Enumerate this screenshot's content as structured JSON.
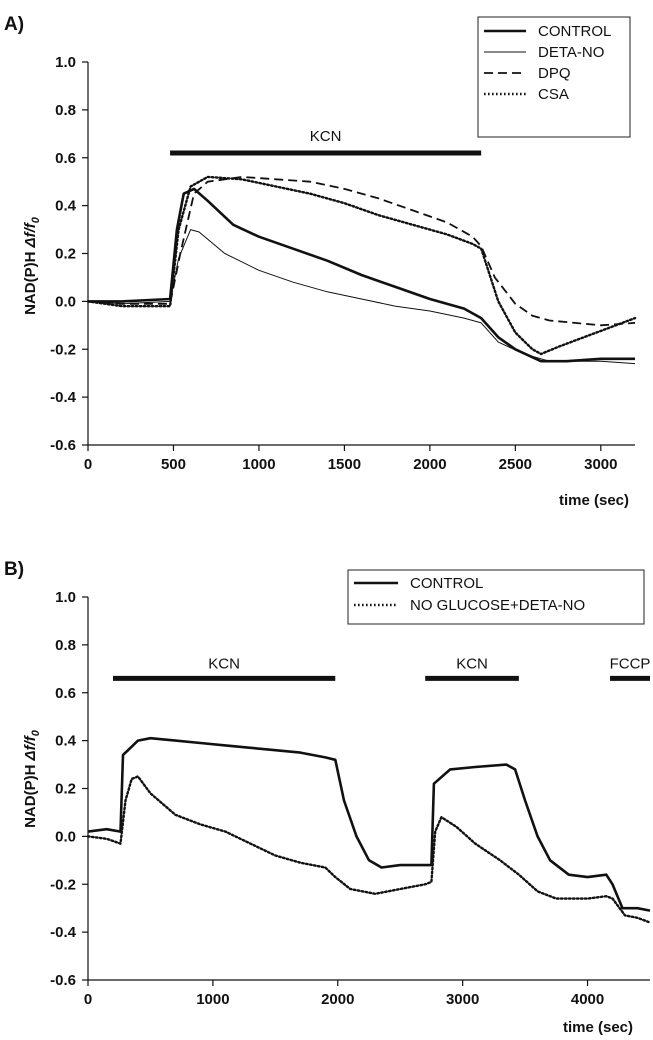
{
  "chart_data": [
    {
      "panel_label": "A)",
      "type": "line",
      "xlabel": "time (sec)",
      "ylabel": "NAD(P)H Δf/f0",
      "xlim": [
        0,
        3200
      ],
      "ylim": [
        -0.6,
        1.0
      ],
      "xticks": [
        0,
        500,
        1000,
        1500,
        2000,
        2500,
        3000
      ],
      "yticks": [
        -0.6,
        -0.4,
        -0.2,
        0.0,
        0.2,
        0.4,
        0.6,
        0.8,
        1.0
      ],
      "ytick_labels": [
        "-0.6",
        "-0.4",
        "-0.2",
        "0.0",
        "0.2",
        "0.4",
        "0.6",
        "0.8",
        "1.0"
      ],
      "legend_position": "top-right",
      "bars": [
        {
          "label": "KCN",
          "start": 480,
          "end": 2300,
          "y": 0.62
        }
      ],
      "series": [
        {
          "name": "CONTROL",
          "style": "thick-solid",
          "points": [
            [
              0,
              0
            ],
            [
              200,
              0
            ],
            [
              480,
              0.01
            ],
            [
              520,
              0.3
            ],
            [
              560,
              0.45
            ],
            [
              620,
              0.47
            ],
            [
              700,
              0.42
            ],
            [
              850,
              0.32
            ],
            [
              1000,
              0.27
            ],
            [
              1200,
              0.22
            ],
            [
              1400,
              0.17
            ],
            [
              1600,
              0.11
            ],
            [
              1800,
              0.06
            ],
            [
              2000,
              0.01
            ],
            [
              2200,
              -0.03
            ],
            [
              2300,
              -0.07
            ],
            [
              2400,
              -0.15
            ],
            [
              2500,
              -0.2
            ],
            [
              2650,
              -0.25
            ],
            [
              2800,
              -0.25
            ],
            [
              3000,
              -0.24
            ],
            [
              3200,
              -0.24
            ]
          ]
        },
        {
          "name": "DETA-NO",
          "style": "thin-solid",
          "points": [
            [
              0,
              0
            ],
            [
              200,
              -0.01
            ],
            [
              480,
              0.0
            ],
            [
              530,
              0.18
            ],
            [
              600,
              0.3
            ],
            [
              650,
              0.29
            ],
            [
              800,
              0.2
            ],
            [
              1000,
              0.13
            ],
            [
              1200,
              0.08
            ],
            [
              1400,
              0.04
            ],
            [
              1600,
              0.01
            ],
            [
              1800,
              -0.02
            ],
            [
              2000,
              -0.04
            ],
            [
              2200,
              -0.07
            ],
            [
              2300,
              -0.09
            ],
            [
              2400,
              -0.17
            ],
            [
              2550,
              -0.22
            ],
            [
              2700,
              -0.25
            ],
            [
              3000,
              -0.25
            ],
            [
              3200,
              -0.26
            ]
          ]
        },
        {
          "name": "DPQ",
          "style": "dashed",
          "points": [
            [
              0,
              0
            ],
            [
              200,
              -0.01
            ],
            [
              480,
              -0.01
            ],
            [
              540,
              0.2
            ],
            [
              620,
              0.45
            ],
            [
              700,
              0.5
            ],
            [
              900,
              0.52
            ],
            [
              1100,
              0.51
            ],
            [
              1300,
              0.5
            ],
            [
              1500,
              0.47
            ],
            [
              1700,
              0.43
            ],
            [
              1900,
              0.38
            ],
            [
              2100,
              0.33
            ],
            [
              2250,
              0.27
            ],
            [
              2300,
              0.23
            ],
            [
              2380,
              0.1
            ],
            [
              2500,
              -0.01
            ],
            [
              2600,
              -0.06
            ],
            [
              2700,
              -0.08
            ],
            [
              3000,
              -0.1
            ],
            [
              3200,
              -0.09
            ]
          ]
        },
        {
          "name": "CSA",
          "style": "dotted",
          "points": [
            [
              0,
              0
            ],
            [
              200,
              -0.02
            ],
            [
              480,
              -0.02
            ],
            [
              530,
              0.3
            ],
            [
              600,
              0.48
            ],
            [
              700,
              0.52
            ],
            [
              900,
              0.51
            ],
            [
              1100,
              0.48
            ],
            [
              1300,
              0.45
            ],
            [
              1500,
              0.41
            ],
            [
              1700,
              0.36
            ],
            [
              1900,
              0.32
            ],
            [
              2100,
              0.28
            ],
            [
              2250,
              0.24
            ],
            [
              2300,
              0.22
            ],
            [
              2400,
              0.0
            ],
            [
              2500,
              -0.13
            ],
            [
              2600,
              -0.2
            ],
            [
              2650,
              -0.22
            ],
            [
              2750,
              -0.19
            ],
            [
              2900,
              -0.15
            ],
            [
              3050,
              -0.11
            ],
            [
              3200,
              -0.07
            ]
          ]
        }
      ]
    },
    {
      "panel_label": "B)",
      "type": "line",
      "xlabel": "time (sec)",
      "ylabel": "NAD(P)H Δf/f0",
      "xlim": [
        0,
        4500
      ],
      "ylim": [
        -0.6,
        1.0
      ],
      "xticks": [
        0,
        1000,
        2000,
        3000,
        4000
      ],
      "yticks": [
        -0.6,
        -0.4,
        -0.2,
        0.0,
        0.2,
        0.4,
        0.6,
        0.8,
        1.0
      ],
      "ytick_labels": [
        "-0.6",
        "-0.4",
        "-0.2",
        "0.0",
        "0.2",
        "0.4",
        "0.6",
        "0.8",
        "1.0"
      ],
      "legend_position": "top-right",
      "bars": [
        {
          "label": "KCN",
          "start": 200,
          "end": 1980,
          "y": 0.66
        },
        {
          "label": "KCN",
          "start": 2700,
          "end": 3450,
          "y": 0.66
        },
        {
          "label": "FCCP",
          "start": 4180,
          "end": 4500,
          "y": 0.66
        }
      ],
      "series": [
        {
          "name": "CONTROL",
          "style": "thick-solid",
          "points": [
            [
              0,
              0.02
            ],
            [
              150,
              0.03
            ],
            [
              260,
              0.02
            ],
            [
              280,
              0.34
            ],
            [
              400,
              0.4
            ],
            [
              500,
              0.41
            ],
            [
              700,
              0.4
            ],
            [
              900,
              0.39
            ],
            [
              1100,
              0.38
            ],
            [
              1300,
              0.37
            ],
            [
              1500,
              0.36
            ],
            [
              1700,
              0.35
            ],
            [
              1900,
              0.33
            ],
            [
              1980,
              0.32
            ],
            [
              2050,
              0.15
            ],
            [
              2150,
              0.0
            ],
            [
              2250,
              -0.1
            ],
            [
              2350,
              -0.13
            ],
            [
              2500,
              -0.12
            ],
            [
              2650,
              -0.12
            ],
            [
              2750,
              -0.12
            ],
            [
              2770,
              0.22
            ],
            [
              2900,
              0.28
            ],
            [
              3100,
              0.29
            ],
            [
              3350,
              0.3
            ],
            [
              3420,
              0.28
            ],
            [
              3500,
              0.15
            ],
            [
              3600,
              0.0
            ],
            [
              3700,
              -0.1
            ],
            [
              3850,
              -0.16
            ],
            [
              4000,
              -0.17
            ],
            [
              4150,
              -0.16
            ],
            [
              4200,
              -0.2
            ],
            [
              4280,
              -0.3
            ],
            [
              4400,
              -0.3
            ],
            [
              4500,
              -0.31
            ]
          ]
        },
        {
          "name": "NO GLUCOSE+DETA-NO",
          "style": "dotted",
          "points": [
            [
              0,
              0.0
            ],
            [
              150,
              -0.01
            ],
            [
              260,
              -0.03
            ],
            [
              300,
              0.15
            ],
            [
              350,
              0.24
            ],
            [
              400,
              0.25
            ],
            [
              500,
              0.18
            ],
            [
              700,
              0.09
            ],
            [
              900,
              0.05
            ],
            [
              1100,
              0.02
            ],
            [
              1300,
              -0.03
            ],
            [
              1500,
              -0.08
            ],
            [
              1700,
              -0.11
            ],
            [
              1900,
              -0.13
            ],
            [
              1980,
              -0.17
            ],
            [
              2100,
              -0.22
            ],
            [
              2300,
              -0.24
            ],
            [
              2500,
              -0.22
            ],
            [
              2700,
              -0.2
            ],
            [
              2750,
              -0.19
            ],
            [
              2780,
              0.02
            ],
            [
              2830,
              0.08
            ],
            [
              2950,
              0.04
            ],
            [
              3100,
              -0.03
            ],
            [
              3300,
              -0.1
            ],
            [
              3450,
              -0.16
            ],
            [
              3600,
              -0.23
            ],
            [
              3750,
              -0.26
            ],
            [
              4000,
              -0.26
            ],
            [
              4150,
              -0.25
            ],
            [
              4200,
              -0.26
            ],
            [
              4300,
              -0.33
            ],
            [
              4400,
              -0.34
            ],
            [
              4500,
              -0.36
            ]
          ]
        }
      ]
    }
  ]
}
